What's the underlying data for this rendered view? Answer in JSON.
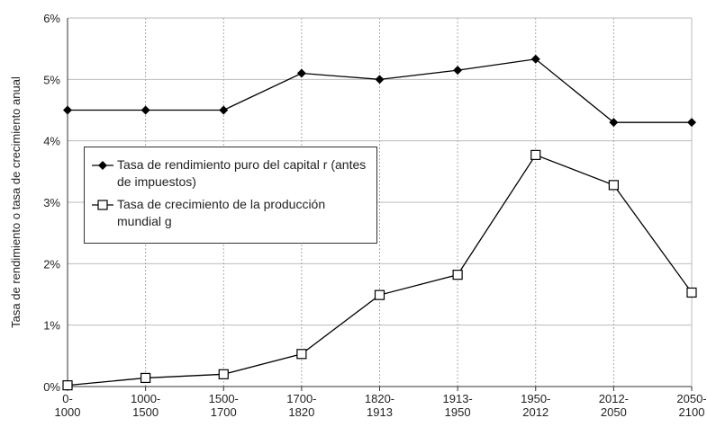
{
  "chart_data": {
    "type": "line",
    "y_label": "Tasa de rendimiento o tasa de crecimiento anual",
    "categories": [
      [
        "0-",
        "1000"
      ],
      [
        "1000-",
        "1500"
      ],
      [
        "1500-",
        "1700"
      ],
      [
        "1700-",
        "1820"
      ],
      [
        "1820-",
        "1913"
      ],
      [
        "1913-",
        "1950"
      ],
      [
        "1950-",
        "2012"
      ],
      [
        "2012-",
        "2050"
      ],
      [
        "2050-",
        "2100"
      ]
    ],
    "series": [
      {
        "name": "Tasa de rendimiento puro del capital r (antes de impuestos)",
        "color": "#000000",
        "marker": "diamond",
        "values": [
          4.5,
          4.5,
          4.5,
          5.1,
          5.0,
          5.15,
          5.33,
          4.3,
          4.3
        ]
      },
      {
        "name": "Tasa de crecimiento de la producción mundial g",
        "color": "#000000",
        "marker": "square",
        "values": [
          0.02,
          0.14,
          0.2,
          0.53,
          1.49,
          1.82,
          3.77,
          3.28,
          1.53
        ]
      }
    ],
    "ylim": [
      0,
      6
    ],
    "yticks": [
      {
        "value": 0,
        "label": "0%"
      },
      {
        "value": 1,
        "label": "1%"
      },
      {
        "value": 2,
        "label": "2%"
      },
      {
        "value": 3,
        "label": "3%"
      },
      {
        "value": 4,
        "label": "4%"
      },
      {
        "value": 5,
        "label": "5%"
      },
      {
        "value": 6,
        "label": "6%"
      }
    ],
    "grid": true
  }
}
